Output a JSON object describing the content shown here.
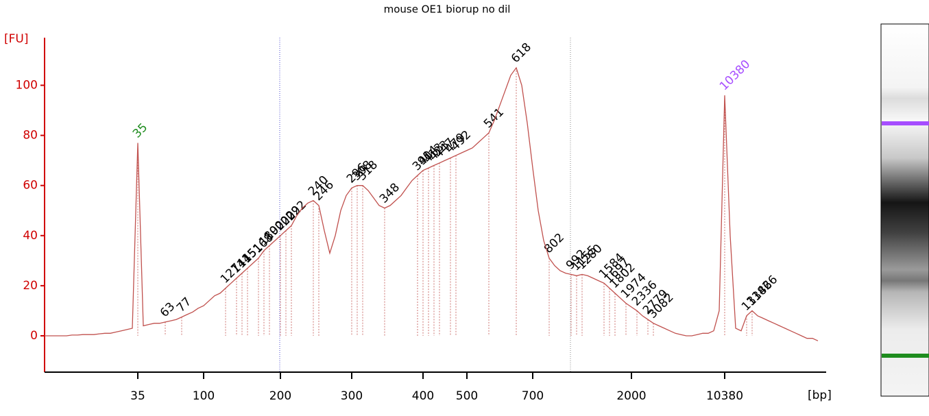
{
  "chart_data": {
    "type": "line",
    "title": "mouse OE1 biorup no dil",
    "y_label": "[FU]",
    "x_label": "[bp]",
    "categories": [
      null,
      null,
      null,
      null,
      null,
      null,
      null,
      null,
      null,
      null,
      null,
      null,
      null,
      null,
      null,
      null,
      null,
      "35",
      null,
      null,
      null,
      null,
      null,
      null,
      null,
      null,
      null,
      null,
      null,
      "100",
      null,
      null,
      null,
      null,
      null,
      null,
      null,
      null,
      null,
      null,
      null,
      null,
      null,
      "200",
      null,
      null,
      null,
      null,
      null,
      null,
      null,
      null,
      null,
      null,
      null,
      null,
      "300",
      null,
      null,
      null,
      null,
      null,
      null,
      null,
      null,
      null,
      null,
      null,
      null,
      "400",
      null,
      null,
      null,
      null,
      null,
      null,
      null,
      "500",
      null,
      null,
      null,
      null,
      null,
      null,
      null,
      null,
      null,
      null,
      null,
      "700",
      null,
      null,
      null,
      null,
      null,
      null,
      null,
      null,
      null,
      null,
      null,
      null,
      null,
      null,
      null,
      null,
      null,
      "2000",
      null,
      null,
      null,
      null,
      null,
      null,
      null,
      null,
      null,
      null,
      null,
      null,
      null,
      null,
      null,
      null,
      "10380",
      null,
      null,
      null,
      null,
      null,
      null,
      null,
      null,
      null,
      null,
      null,
      null,
      null,
      null,
      null,
      null,
      null
    ],
    "series": [
      {
        "color": "#c0504d",
        "values": [
          0,
          0,
          0,
          0,
          0,
          0.3,
          0.3,
          0.5,
          0.5,
          0.5,
          0.8,
          1,
          1,
          1.5,
          2,
          2.5,
          3,
          77,
          4,
          4.5,
          5,
          5,
          5.5,
          6,
          6.5,
          7.5,
          8.5,
          9.5,
          11,
          12,
          14,
          16,
          17,
          19,
          21,
          23,
          25,
          27,
          29,
          31,
          34,
          36,
          38,
          40,
          42,
          44,
          48,
          51,
          53,
          54,
          52,
          42,
          33,
          40,
          50,
          56,
          59,
          60,
          60,
          58,
          55,
          52,
          51,
          52,
          54,
          56,
          59,
          62,
          64,
          66,
          67,
          68,
          69,
          70,
          71,
          72,
          73,
          74,
          75,
          77,
          79,
          81,
          86,
          92,
          98,
          104,
          107,
          100,
          85,
          67,
          50,
          38,
          31,
          28,
          26,
          25,
          24.5,
          24,
          24.5,
          24,
          23,
          22,
          21,
          19,
          17,
          15,
          13,
          11.5,
          10,
          8,
          6.5,
          5,
          4,
          3,
          2,
          1,
          0.5,
          0,
          0,
          0.5,
          1,
          1,
          2,
          10,
          96,
          40,
          3,
          2,
          8,
          10,
          8,
          7,
          6,
          5,
          4,
          3,
          2,
          1,
          0,
          -1,
          -1,
          -2
        ],
        "peak_labels": [
          null,
          null,
          null,
          null,
          null,
          null,
          null,
          null,
          null,
          null,
          null,
          null,
          null,
          null,
          null,
          null,
          null,
          "35",
          null,
          null,
          null,
          null,
          "63",
          null,
          null,
          "77",
          null,
          null,
          null,
          null,
          null,
          null,
          null,
          "127",
          null,
          "141",
          "145",
          "151",
          null,
          "168",
          "180",
          "190",
          null,
          "202",
          "209",
          "222",
          null,
          null,
          null,
          "240",
          "246",
          null,
          null,
          null,
          null,
          null,
          "296",
          "308",
          "318",
          null,
          null,
          null,
          "348",
          null,
          null,
          null,
          null,
          null,
          "391",
          "404",
          "413",
          "423",
          "447",
          null,
          "479",
          "492",
          null,
          null,
          null,
          null,
          null,
          "541",
          null,
          null,
          null,
          null,
          "618",
          null,
          null,
          null,
          null,
          null,
          "802",
          null,
          null,
          null,
          "992",
          "1155",
          "1280",
          null,
          null,
          null,
          "1584",
          "1697",
          "1802",
          null,
          "1974",
          null,
          "2336",
          null,
          "2779",
          "3082",
          null,
          null,
          null,
          null,
          null,
          null,
          null,
          null,
          null,
          null,
          null,
          null,
          "10380",
          null,
          null,
          null,
          "13142",
          "13866",
          null,
          null,
          null,
          null,
          null,
          null,
          null,
          null,
          null,
          null,
          null,
          null
        ]
      }
    ],
    "label_colors": {
      "35": "#1e8c1e",
      "10380": "#a64dff"
    },
    "ylim": [
      -14.5,
      119
    ],
    "yticks": [
      0,
      20,
      40,
      60,
      80,
      100
    ],
    "grid": false
  }
}
